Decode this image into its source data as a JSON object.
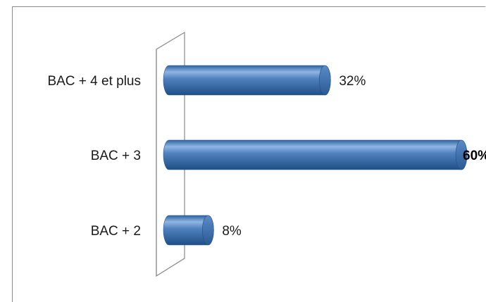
{
  "chart_data": {
    "type": "bar",
    "orientation": "horizontal",
    "style": "3d-cylinder",
    "categories": [
      "BAC + 4 et plus",
      "BAC + 3",
      "BAC + 2"
    ],
    "values": [
      32,
      60,
      8
    ],
    "value_labels": [
      "32%",
      "60%",
      "8%"
    ],
    "bold_value_index": 1,
    "xlim": [
      0,
      60
    ],
    "grid": false,
    "legend": "none",
    "bar_color": "#4F81BD",
    "bar_dark_color": "#2A5A94",
    "bar_light_color": "#8DB3E2"
  }
}
